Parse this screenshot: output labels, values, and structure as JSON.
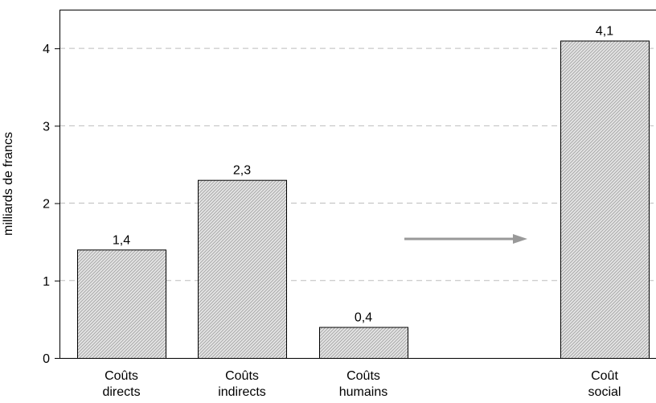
{
  "chart_data": {
    "type": "bar",
    "categories": [
      [
        "Coûts",
        "directs"
      ],
      [
        "Coûts",
        "indirects"
      ],
      [
        "Coûts",
        "humains"
      ],
      [
        "Coût",
        "social"
      ]
    ],
    "values": [
      1.4,
      2.3,
      0.4,
      4.1
    ],
    "value_labels": [
      "1,4",
      "2,3",
      "0,4",
      "4,1"
    ],
    "title": "",
    "xlabel": "",
    "ylabel": "milliards de francs",
    "ylim": [
      0,
      4.5
    ],
    "yticks": [
      0,
      1,
      2,
      3,
      4
    ],
    "ytick_labels": [
      "0",
      "1",
      "2",
      "3",
      "4"
    ],
    "grid": "horizontal dashed",
    "bar_fill": "hatched light gray",
    "annotation": "arrow pointing right toward the Coût social bar"
  },
  "colors": {
    "bar_fill_light": "#e6e6e6",
    "bar_hatch": "#a8a8a8",
    "bar_edge": "#000000",
    "grid": "#bdbdbd",
    "arrow": "#999999"
  }
}
